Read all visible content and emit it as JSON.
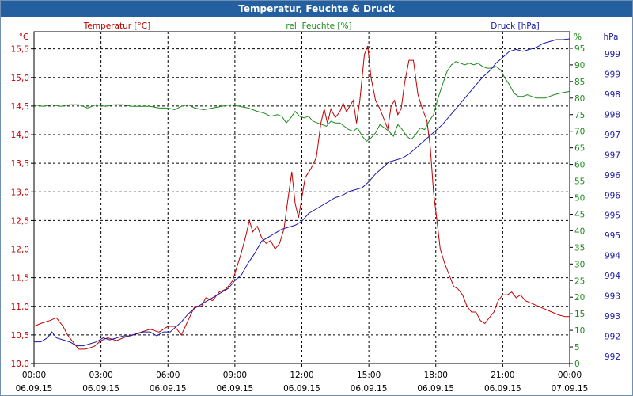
{
  "window": {
    "title": "Temperatur, Feuchte & Druck"
  },
  "chart_data": {
    "type": "line",
    "title": "Temperatur, Feuchte & Druck",
    "x_labels": [
      {
        "time": "00:00",
        "date": "06.09.15"
      },
      {
        "time": "03:00",
        "date": "06.09.15"
      },
      {
        "time": "06:00",
        "date": "06.09.15"
      },
      {
        "time": "09:00",
        "date": "06.09.15"
      },
      {
        "time": "12:00",
        "date": "06.09.15"
      },
      {
        "time": "15:00",
        "date": "06.09.15"
      },
      {
        "time": "18:00",
        "date": "06.09.15"
      },
      {
        "time": "21:00",
        "date": "06.09.15"
      },
      {
        "time": "00:00",
        "date": "07.09.15"
      }
    ],
    "xlim_hours": [
      0,
      24
    ],
    "axes": {
      "temperature": {
        "unit": "°C",
        "range": [
          10.0,
          15.8
        ],
        "ticks": [
          "10,0",
          "10,5",
          "11,0",
          "11,5",
          "12,0",
          "12,5",
          "13,0",
          "13,5",
          "14,0",
          "14,5",
          "15,0",
          "15,5"
        ]
      },
      "humidity": {
        "unit": "%",
        "range": [
          0,
          100
        ],
        "ticks": [
          "0",
          "5",
          "10",
          "15",
          "20",
          "25",
          "30",
          "35",
          "40",
          "45",
          "50",
          "55",
          "60",
          "65",
          "70",
          "75",
          "80",
          "85",
          "90",
          "95"
        ]
      },
      "pressure": {
        "unit": "hPa",
        "range": [
          991.4,
          999.8
        ],
        "ticks": [
          "992",
          "992",
          "993",
          "993",
          "994",
          "994",
          "995",
          "995",
          "996",
          "996",
          "997",
          "997",
          "998",
          "998",
          "999",
          "999"
        ]
      }
    },
    "series": [
      {
        "name": "Temperatur [°C]",
        "axis": "temperature",
        "color": "#c00000",
        "points": [
          [
            0,
            10.65
          ],
          [
            0.3,
            10.7
          ],
          [
            0.7,
            10.75
          ],
          [
            1.0,
            10.8
          ],
          [
            1.3,
            10.65
          ],
          [
            1.5,
            10.5
          ],
          [
            1.8,
            10.35
          ],
          [
            2.0,
            10.25
          ],
          [
            2.3,
            10.25
          ],
          [
            2.7,
            10.3
          ],
          [
            3.0,
            10.4
          ],
          [
            3.3,
            10.45
          ],
          [
            3.7,
            10.4
          ],
          [
            4.0,
            10.45
          ],
          [
            4.4,
            10.5
          ],
          [
            4.8,
            10.55
          ],
          [
            5.2,
            10.6
          ],
          [
            5.6,
            10.55
          ],
          [
            6.0,
            10.65
          ],
          [
            6.3,
            10.65
          ],
          [
            6.6,
            10.5
          ],
          [
            6.9,
            10.75
          ],
          [
            7.2,
            11.0
          ],
          [
            7.5,
            11.0
          ],
          [
            7.7,
            11.15
          ],
          [
            8.0,
            11.1
          ],
          [
            8.3,
            11.25
          ],
          [
            8.6,
            11.3
          ],
          [
            8.9,
            11.45
          ],
          [
            9.1,
            11.7
          ],
          [
            9.3,
            11.95
          ],
          [
            9.5,
            12.25
          ],
          [
            9.65,
            12.5
          ],
          [
            9.8,
            12.3
          ],
          [
            10.0,
            12.4
          ],
          [
            10.2,
            12.2
          ],
          [
            10.4,
            12.1
          ],
          [
            10.6,
            12.15
          ],
          [
            10.8,
            12.0
          ],
          [
            11.0,
            12.1
          ],
          [
            11.2,
            12.35
          ],
          [
            11.35,
            12.8
          ],
          [
            11.55,
            13.35
          ],
          [
            11.7,
            12.8
          ],
          [
            11.85,
            12.55
          ],
          [
            12.0,
            12.9
          ],
          [
            12.15,
            13.25
          ],
          [
            12.4,
            13.4
          ],
          [
            12.65,
            13.6
          ],
          [
            12.85,
            14.2
          ],
          [
            13.0,
            14.45
          ],
          [
            13.15,
            14.2
          ],
          [
            13.3,
            14.45
          ],
          [
            13.5,
            14.3
          ],
          [
            13.7,
            14.4
          ],
          [
            13.85,
            14.55
          ],
          [
            14.0,
            14.4
          ],
          [
            14.15,
            14.5
          ],
          [
            14.3,
            14.6
          ],
          [
            14.45,
            14.2
          ],
          [
            14.6,
            14.6
          ],
          [
            14.8,
            15.4
          ],
          [
            14.95,
            15.55
          ],
          [
            15.1,
            15.0
          ],
          [
            15.3,
            14.6
          ],
          [
            15.5,
            14.45
          ],
          [
            15.7,
            14.25
          ],
          [
            15.85,
            14.1
          ],
          [
            16.0,
            14.5
          ],
          [
            16.15,
            14.6
          ],
          [
            16.3,
            14.35
          ],
          [
            16.45,
            14.45
          ],
          [
            16.6,
            14.9
          ],
          [
            16.8,
            15.3
          ],
          [
            17.0,
            15.3
          ],
          [
            17.2,
            14.7
          ],
          [
            17.4,
            14.45
          ],
          [
            17.6,
            14.25
          ],
          [
            17.75,
            13.8
          ],
          [
            17.9,
            13.0
          ],
          [
            18.05,
            12.5
          ],
          [
            18.2,
            12.0
          ],
          [
            18.4,
            11.75
          ],
          [
            18.6,
            11.55
          ],
          [
            18.8,
            11.35
          ],
          [
            19.0,
            11.3
          ],
          [
            19.2,
            11.2
          ],
          [
            19.4,
            11.0
          ],
          [
            19.6,
            10.9
          ],
          [
            19.8,
            10.9
          ],
          [
            20.0,
            10.75
          ],
          [
            20.2,
            10.7
          ],
          [
            20.4,
            10.8
          ],
          [
            20.6,
            10.9
          ],
          [
            20.8,
            11.1
          ],
          [
            21.0,
            11.2
          ],
          [
            21.2,
            11.2
          ],
          [
            21.4,
            11.25
          ],
          [
            21.6,
            11.15
          ],
          [
            21.8,
            11.2
          ],
          [
            22.0,
            11.1
          ],
          [
            22.3,
            11.05
          ],
          [
            22.6,
            11.0
          ],
          [
            22.9,
            10.95
          ],
          [
            23.2,
            10.9
          ],
          [
            23.5,
            10.85
          ],
          [
            23.8,
            10.82
          ],
          [
            24.0,
            10.82
          ]
        ]
      },
      {
        "name": "rel. Feuchte [%]",
        "axis": "humidity",
        "color": "#1a8a1a",
        "points": [
          [
            0,
            78
          ],
          [
            0.4,
            77.5
          ],
          [
            0.8,
            78
          ],
          [
            1.2,
            77.5
          ],
          [
            1.6,
            78
          ],
          [
            2.0,
            78
          ],
          [
            2.4,
            77
          ],
          [
            2.8,
            78
          ],
          [
            3.2,
            77.5
          ],
          [
            3.6,
            78
          ],
          [
            4.0,
            78
          ],
          [
            4.4,
            77.5
          ],
          [
            4.8,
            77.5
          ],
          [
            5.2,
            77.5
          ],
          [
            5.6,
            77
          ],
          [
            6.0,
            77
          ],
          [
            6.3,
            76.5
          ],
          [
            6.6,
            77.5
          ],
          [
            6.9,
            78
          ],
          [
            7.2,
            77
          ],
          [
            7.6,
            76.5
          ],
          [
            8.0,
            77
          ],
          [
            8.4,
            77.5
          ],
          [
            8.8,
            78
          ],
          [
            9.2,
            77.5
          ],
          [
            9.6,
            77
          ],
          [
            10.0,
            76
          ],
          [
            10.3,
            75.5
          ],
          [
            10.6,
            74.5
          ],
          [
            10.9,
            75
          ],
          [
            11.1,
            74.5
          ],
          [
            11.3,
            72.5
          ],
          [
            11.5,
            74
          ],
          [
            11.7,
            76
          ],
          [
            11.9,
            74.5
          ],
          [
            12.1,
            74
          ],
          [
            12.3,
            74.5
          ],
          [
            12.5,
            73
          ],
          [
            12.7,
            72.5
          ],
          [
            12.9,
            72
          ],
          [
            13.1,
            71.5
          ],
          [
            13.3,
            73
          ],
          [
            13.5,
            72.5
          ],
          [
            13.7,
            72.5
          ],
          [
            13.9,
            71.5
          ],
          [
            14.1,
            70.5
          ],
          [
            14.3,
            70
          ],
          [
            14.5,
            71
          ],
          [
            14.7,
            68.5
          ],
          [
            14.9,
            67
          ],
          [
            15.1,
            68
          ],
          [
            15.3,
            69.5
          ],
          [
            15.5,
            72
          ],
          [
            15.7,
            71
          ],
          [
            15.9,
            70
          ],
          [
            16.1,
            68.5
          ],
          [
            16.3,
            72
          ],
          [
            16.5,
            70.5
          ],
          [
            16.7,
            68.5
          ],
          [
            16.9,
            67.5
          ],
          [
            17.1,
            69
          ],
          [
            17.3,
            71
          ],
          [
            17.5,
            70.5
          ],
          [
            17.7,
            73
          ],
          [
            17.9,
            75
          ],
          [
            18.1,
            80
          ],
          [
            18.3,
            84
          ],
          [
            18.5,
            88
          ],
          [
            18.7,
            90
          ],
          [
            18.9,
            91
          ],
          [
            19.1,
            90.5
          ],
          [
            19.3,
            90
          ],
          [
            19.5,
            90.5
          ],
          [
            19.7,
            90
          ],
          [
            19.9,
            90.5
          ],
          [
            20.1,
            89.5
          ],
          [
            20.3,
            89
          ],
          [
            20.5,
            89
          ],
          [
            20.7,
            89.5
          ],
          [
            20.9,
            88.5
          ],
          [
            21.1,
            86
          ],
          [
            21.3,
            84
          ],
          [
            21.5,
            81.5
          ],
          [
            21.7,
            80.5
          ],
          [
            21.9,
            80.5
          ],
          [
            22.1,
            81
          ],
          [
            22.3,
            80.5
          ],
          [
            22.5,
            80
          ],
          [
            22.7,
            80
          ],
          [
            22.9,
            80
          ],
          [
            23.1,
            80.5
          ],
          [
            23.3,
            81
          ],
          [
            23.6,
            81.5
          ],
          [
            24.0,
            82
          ]
        ]
      },
      {
        "name": "Druck [hPa]",
        "axis": "pressure",
        "color": "#1a1aa8",
        "points": [
          [
            0,
            991.95
          ],
          [
            0.3,
            991.95
          ],
          [
            0.6,
            992.05
          ],
          [
            0.8,
            992.2
          ],
          [
            1.0,
            992.05
          ],
          [
            1.3,
            992.0
          ],
          [
            1.6,
            991.95
          ],
          [
            1.9,
            991.85
          ],
          [
            2.2,
            991.85
          ],
          [
            2.5,
            991.9
          ],
          [
            2.8,
            991.95
          ],
          [
            3.1,
            992.05
          ],
          [
            3.4,
            992.0
          ],
          [
            3.7,
            992.05
          ],
          [
            4.0,
            992.1
          ],
          [
            4.3,
            992.1
          ],
          [
            4.6,
            992.15
          ],
          [
            4.9,
            992.2
          ],
          [
            5.2,
            992.2
          ],
          [
            5.5,
            992.1
          ],
          [
            5.8,
            992.2
          ],
          [
            6.1,
            992.2
          ],
          [
            6.3,
            992.3
          ],
          [
            6.6,
            992.45
          ],
          [
            6.9,
            992.65
          ],
          [
            7.2,
            992.8
          ],
          [
            7.5,
            992.9
          ],
          [
            7.8,
            993.0
          ],
          [
            8.1,
            993.1
          ],
          [
            8.4,
            993.2
          ],
          [
            8.7,
            993.3
          ],
          [
            9.0,
            993.5
          ],
          [
            9.3,
            993.65
          ],
          [
            9.6,
            993.95
          ],
          [
            9.9,
            994.2
          ],
          [
            10.2,
            994.5
          ],
          [
            10.5,
            994.6
          ],
          [
            10.8,
            994.7
          ],
          [
            11.1,
            994.8
          ],
          [
            11.4,
            994.85
          ],
          [
            11.7,
            994.9
          ],
          [
            12.0,
            995.0
          ],
          [
            12.3,
            995.2
          ],
          [
            12.6,
            995.3
          ],
          [
            12.9,
            995.4
          ],
          [
            13.2,
            995.5
          ],
          [
            13.5,
            995.6
          ],
          [
            13.8,
            995.65
          ],
          [
            14.1,
            995.75
          ],
          [
            14.4,
            995.8
          ],
          [
            14.7,
            995.85
          ],
          [
            15.0,
            996.0
          ],
          [
            15.3,
            996.2
          ],
          [
            15.6,
            996.35
          ],
          [
            15.9,
            996.5
          ],
          [
            16.2,
            996.55
          ],
          [
            16.5,
            996.6
          ],
          [
            16.8,
            996.7
          ],
          [
            17.1,
            996.85
          ],
          [
            17.4,
            997.0
          ],
          [
            17.7,
            997.15
          ],
          [
            18.0,
            997.3
          ],
          [
            18.3,
            997.45
          ],
          [
            18.6,
            997.65
          ],
          [
            18.9,
            997.85
          ],
          [
            19.2,
            998.05
          ],
          [
            19.5,
            998.25
          ],
          [
            19.8,
            998.45
          ],
          [
            20.1,
            998.65
          ],
          [
            20.4,
            998.8
          ],
          [
            20.7,
            999.0
          ],
          [
            21.0,
            999.15
          ],
          [
            21.3,
            999.3
          ],
          [
            21.6,
            999.35
          ],
          [
            21.9,
            999.3
          ],
          [
            22.2,
            999.35
          ],
          [
            22.5,
            999.4
          ],
          [
            22.8,
            999.5
          ],
          [
            23.1,
            999.55
          ],
          [
            23.4,
            999.6
          ],
          [
            23.7,
            999.6
          ],
          [
            24.0,
            999.62
          ]
        ]
      }
    ]
  }
}
